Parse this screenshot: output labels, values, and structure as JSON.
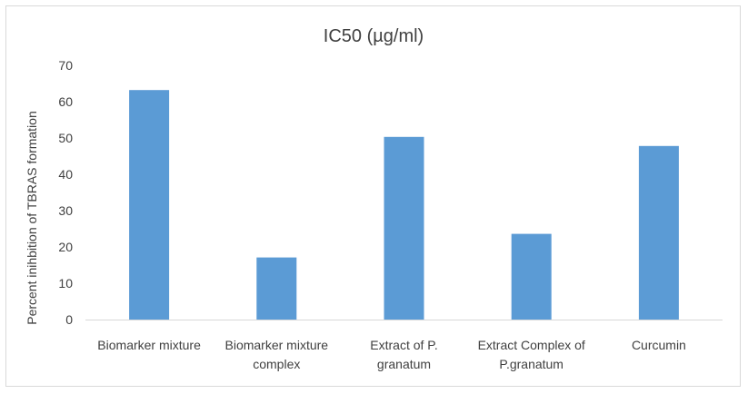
{
  "chart_data": {
    "type": "bar",
    "title": "IC50 (µg/ml)",
    "xlabel": "",
    "ylabel": "Percent inihbition  of TBRAS formation",
    "categories": [
      [
        "Biomarker mixture"
      ],
      [
        "Biomarker mixture",
        "complex"
      ],
      [
        "Extract of P.",
        "granatum"
      ],
      [
        "Extract Complex of",
        "P.granatum"
      ],
      [
        "Curcumin"
      ]
    ],
    "values": [
      63.2,
      17.1,
      50.3,
      23.6,
      47.8
    ],
    "ylim": [
      0,
      70
    ],
    "yticks": [
      0,
      10,
      20,
      30,
      40,
      50,
      60,
      70
    ],
    "grid": false,
    "legend": "none",
    "bar_color": "#5b9bd5",
    "axis_color": "#d9d9d9"
  }
}
